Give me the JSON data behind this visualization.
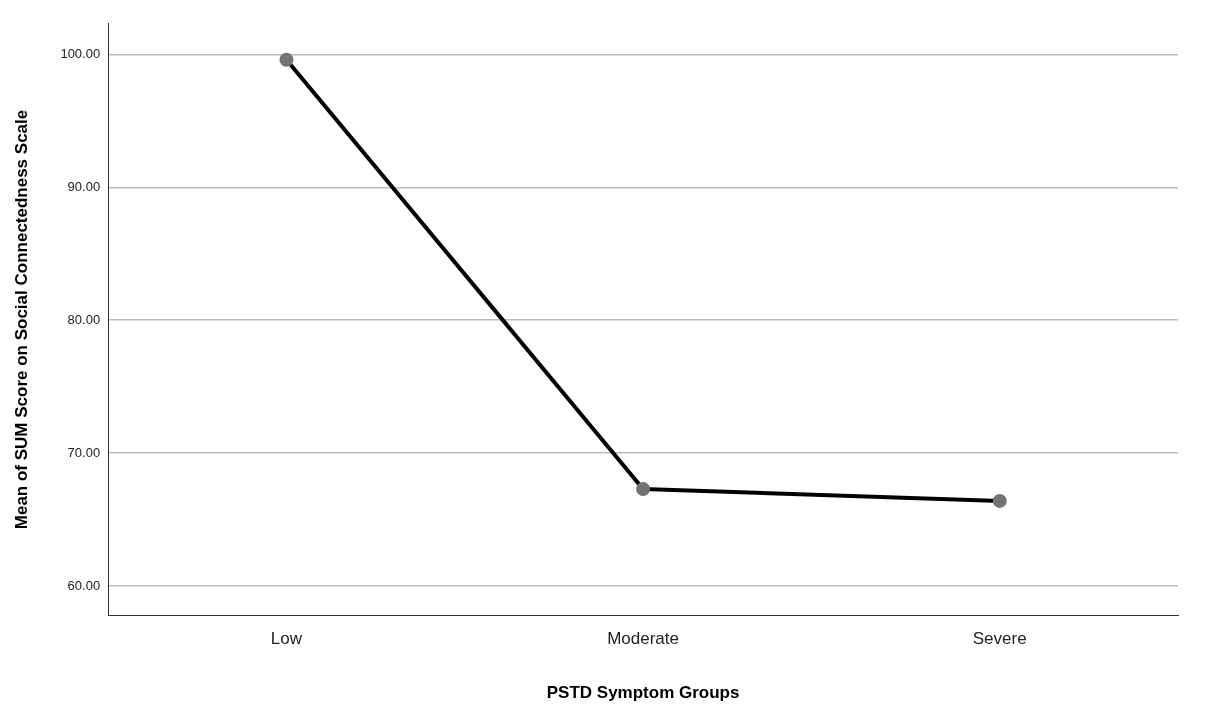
{
  "chart_data": {
    "type": "line",
    "xlabel": "PSTD Symptom Groups",
    "ylabel": "Mean of SUM Score on Social Connectedness Scale",
    "categories": [
      "Low",
      "Moderate",
      "Severe"
    ],
    "series": [
      {
        "color": "#000000",
        "values": [
          99.6,
          67.3,
          66.4
        ]
      }
    ],
    "ylim": [
      57.8,
      102.3
    ],
    "yticks": [
      {
        "value": 60,
        "label": "60.00"
      },
      {
        "value": 70,
        "label": "70.00"
      },
      {
        "value": 80,
        "label": "80.00"
      },
      {
        "value": 90,
        "label": "90.00"
      },
      {
        "value": 100,
        "label": "100.00"
      }
    ],
    "grid": "y",
    "legend": false,
    "marker": "circle",
    "line_style": "solid"
  }
}
